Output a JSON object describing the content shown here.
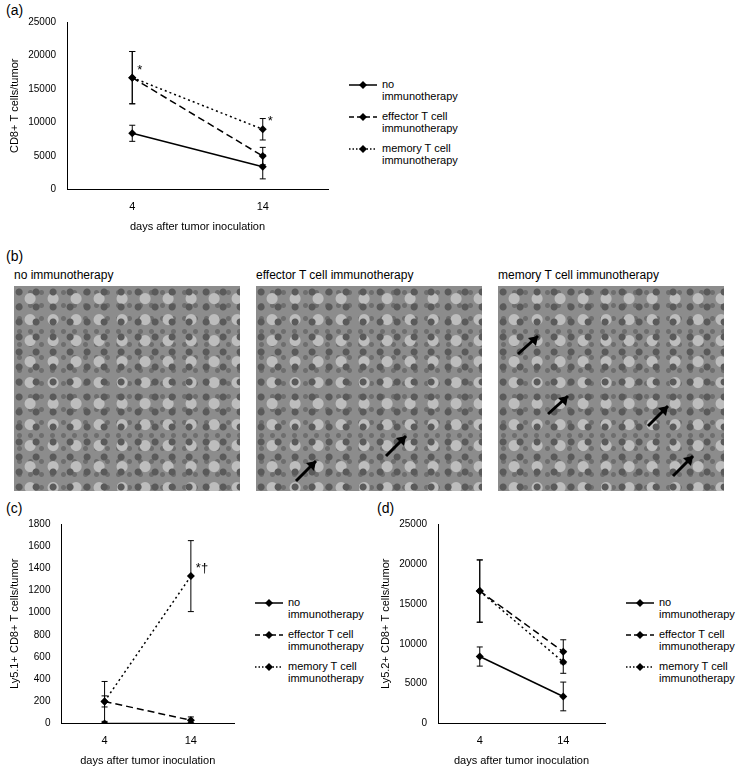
{
  "chart_data": [
    {
      "panel_label": "(a)",
      "type": "line",
      "x_label": "days after tumor inoculation",
      "y_label": "CD8+ T cells/tumor",
      "categories": [
        "4",
        "14"
      ],
      "ylim": [
        0,
        25000
      ],
      "yticks": [
        0,
        5000,
        10000,
        15000,
        20000,
        25000
      ],
      "grid": false,
      "legend": "right",
      "series": [
        {
          "name": "no immunotherapy",
          "color": "#000000",
          "marker": "diamond",
          "line_style": "solid",
          "values": [
            8400,
            3400
          ],
          "errors": [
            1200,
            1800
          ]
        },
        {
          "name": "effector T cell immunotherapy",
          "color": "#000000",
          "marker": "diamond",
          "line_style": "dashed",
          "values": [
            16700,
            5000
          ],
          "errors": [
            3900,
            1300
          ]
        },
        {
          "name": "memory T cell immunotherapy",
          "color": "#000000",
          "marker": "diamond",
          "line_style": "dotted",
          "values": [
            16700,
            9000
          ],
          "errors": [
            3900,
            1600
          ]
        }
      ],
      "annotations": [
        {
          "text": "*",
          "category": "4",
          "series": "memory T cell immunotherapy"
        },
        {
          "text": "*",
          "category": "14",
          "series": "memory T cell immunotherapy"
        }
      ]
    },
    {
      "panel_label": "(c)",
      "type": "line",
      "x_label": "days after tumor inoculation",
      "y_label": "Ly5.1+ CD8+ T cells/tumor",
      "categories": [
        "4",
        "14"
      ],
      "ylim": [
        0,
        1800
      ],
      "yticks": [
        0,
        200,
        400,
        600,
        800,
        1000,
        1200,
        1400,
        1600,
        1800
      ],
      "grid": false,
      "legend": "right",
      "series": [
        {
          "name": "no immunotherapy",
          "color": "#000000",
          "marker": "diamond",
          "line_style": "solid",
          "values": [
            0,
            0
          ],
          "errors": [
            0,
            0
          ]
        },
        {
          "name": "effector T cell immunotherapy",
          "color": "#000000",
          "marker": "diamond",
          "line_style": "dashed",
          "values": [
            200,
            30
          ],
          "errors": [
            180,
            30
          ]
        },
        {
          "name": "memory T cell immunotherapy",
          "color": "#000000",
          "marker": "diamond",
          "line_style": "dotted",
          "values": [
            200,
            1330
          ],
          "errors": [
            50,
            320
          ]
        }
      ],
      "annotations": [
        {
          "text": "*†",
          "category": "14",
          "series": "memory T cell immunotherapy"
        }
      ]
    },
    {
      "panel_label": "(d)",
      "type": "line",
      "x_label": "days after tumor inoculation",
      "y_label": "Ly5.2+ CD8+ T cells/tumor",
      "categories": [
        "4",
        "14"
      ],
      "ylim": [
        0,
        25000
      ],
      "yticks": [
        0,
        5000,
        10000,
        15000,
        20000,
        25000
      ],
      "grid": false,
      "legend": "right",
      "series": [
        {
          "name": "no immunotherapy",
          "color": "#000000",
          "marker": "diamond",
          "line_style": "solid",
          "values": [
            8400,
            3400
          ],
          "errors": [
            1200,
            1800
          ]
        },
        {
          "name": "effector T cell immunotherapy",
          "color": "#000000",
          "marker": "diamond",
          "line_style": "dashed",
          "values": [
            16600,
            9000
          ],
          "errors": [
            3900,
            1500
          ]
        },
        {
          "name": "memory T cell immunotherapy",
          "color": "#000000",
          "marker": "diamond",
          "line_style": "dotted",
          "values": [
            16600,
            7700
          ],
          "errors": [
            3900,
            1400
          ]
        }
      ]
    }
  ],
  "image_panel": {
    "panel_label": "(b)",
    "captions": [
      "no immunotherapy",
      "effector T cell immunotherapy",
      "memory T cell immunotherapy"
    ]
  }
}
